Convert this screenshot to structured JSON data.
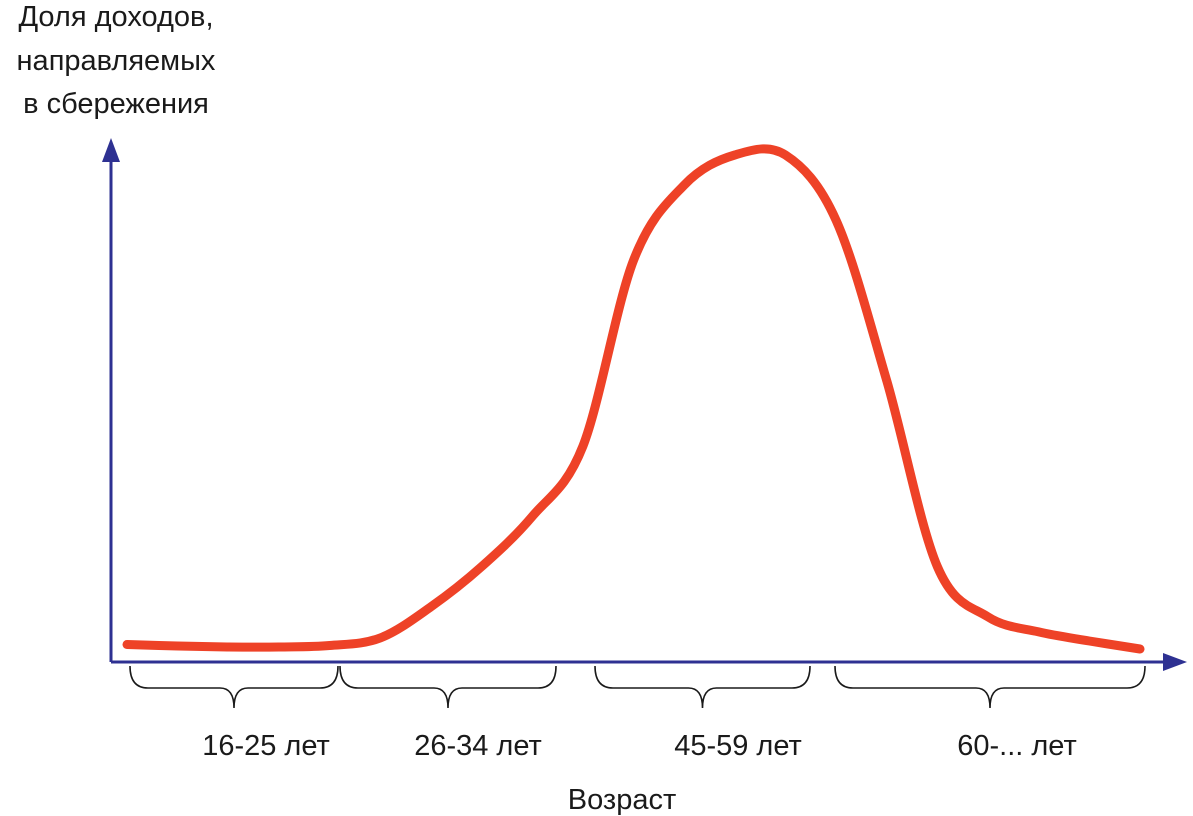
{
  "chart_data": {
    "type": "line",
    "ylabel_lines": [
      "Доля доходов,",
      "направляемых",
      "в сбережения"
    ],
    "xlabel": "Возраст",
    "categories": [
      "16-25 лет",
      "26-34 лет",
      "45-59 лет",
      "60-... лет"
    ],
    "x": [
      0,
      5,
      10,
      15,
      20,
      25,
      30,
      35,
      40,
      45,
      50,
      55,
      60,
      65,
      70,
      75,
      80,
      85,
      90,
      95,
      100
    ],
    "series": [
      {
        "values": [
          1.5,
          1.2,
          1.0,
          1.0,
          1.3,
          2.8,
          9,
          17,
          27,
          41,
          78,
          93,
          99,
          99,
          86,
          54,
          17,
          7,
          4,
          2.2,
          0.6
        ]
      }
    ],
    "curve_color": "#ee4227",
    "axis_color": "#2e3192",
    "ylim": [
      0,
      100
    ],
    "grid": false,
    "x_axis_arrow": true,
    "y_axis_arrow": true
  }
}
